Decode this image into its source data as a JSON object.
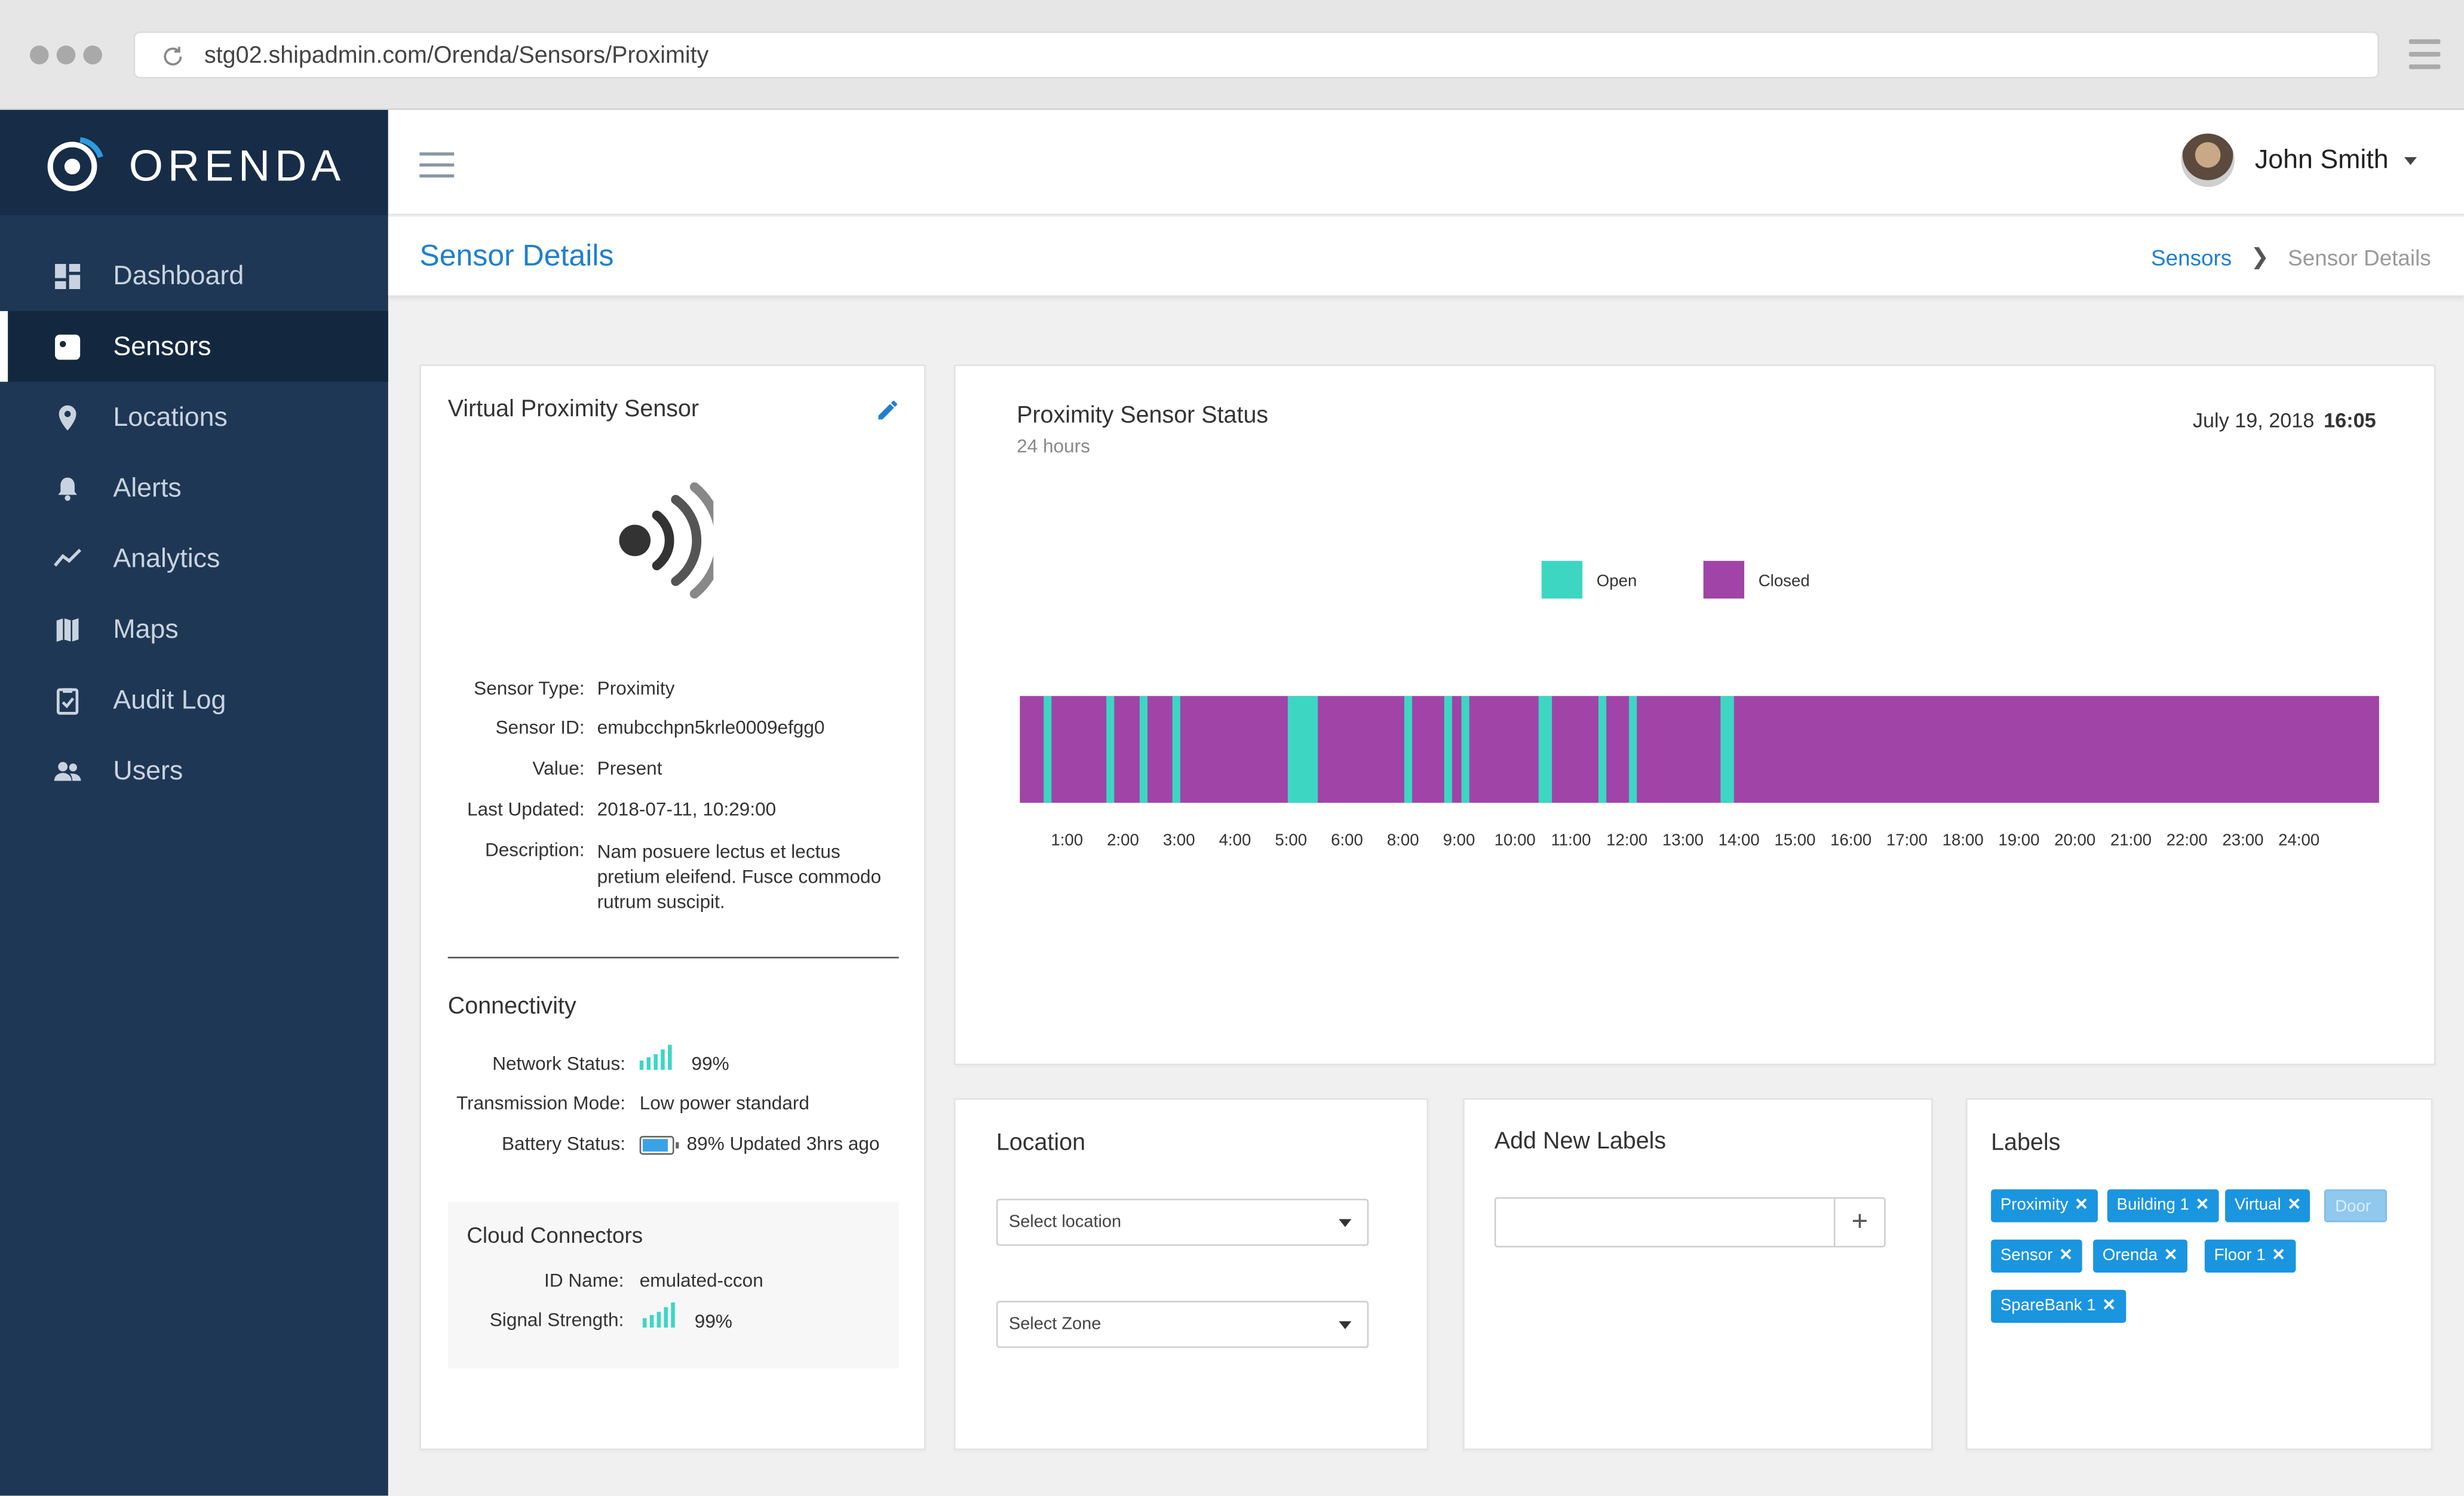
{
  "browser": {
    "url": "stg02.shipadmin.com/Orenda/Sensors/Proximity"
  },
  "brand": {
    "name": "ORENDA"
  },
  "sidebar": {
    "items": [
      {
        "label": "Dashboard",
        "icon": "dashboard-icon"
      },
      {
        "label": "Sensors",
        "icon": "sensor-icon",
        "active": true
      },
      {
        "label": "Locations",
        "icon": "location-pin-icon"
      },
      {
        "label": "Alerts",
        "icon": "bell-icon"
      },
      {
        "label": "Analytics",
        "icon": "analytics-icon"
      },
      {
        "label": "Maps",
        "icon": "map-icon"
      },
      {
        "label": "Audit Log",
        "icon": "clipboard-icon"
      },
      {
        "label": "Users",
        "icon": "users-icon"
      }
    ]
  },
  "header": {
    "user_name": "John Smith"
  },
  "page": {
    "title": "Sensor Details",
    "breadcrumb": [
      "Sensors",
      "Sensor Details"
    ]
  },
  "sensor": {
    "title": "Virtual Proximity Sensor",
    "fields": {
      "type": {
        "label": "Sensor Type:",
        "value": "Proximity"
      },
      "id": {
        "label": "Sensor ID:",
        "value": "emubcchpn5krle0009efgg0"
      },
      "value": {
        "label": "Value:",
        "value": "Present"
      },
      "updated": {
        "label": "Last Updated:",
        "value": "2018-07-11, 10:29:00"
      },
      "description": {
        "label": "Description:",
        "value": "Nam posuere lectus et lectus pretium eleifend. Fusce commodo rutrum suscipit."
      }
    },
    "connectivity": {
      "title": "Connectivity",
      "network": {
        "label": "Network Status:",
        "value": "99%"
      },
      "transmission": {
        "label": "Transmission Mode:",
        "value": "Low power standard"
      },
      "battery": {
        "label": "Battery Status:",
        "value": "89% Updated 3hrs ago",
        "level": 0.89
      }
    },
    "cloud": {
      "title": "Cloud Connectors",
      "id_name": {
        "label": "ID Name:",
        "value": "emulated-ccon"
      },
      "signal": {
        "label": "Signal Strength:",
        "value": "99%"
      }
    }
  },
  "status_chart": {
    "title": "Proximity Sensor Status",
    "subtitle": "24 hours",
    "date": "July 19, 2018",
    "time": "16:05"
  },
  "colors": {
    "open": "#3dd6c2",
    "closed": "#a044a8",
    "accent": "#1f7fd0",
    "sidebar": "#1e3755"
  },
  "chart_data": {
    "type": "bar",
    "title": "Proximity Sensor Status",
    "subtitle": "24 hours",
    "legend": [
      "Open",
      "Closed"
    ],
    "legend_position": "top-center",
    "x_ticks": [
      "1:00",
      "2:00",
      "3:00",
      "4:00",
      "5:00",
      "6:00",
      "8:00",
      "9:00",
      "10:00",
      "11:00",
      "12:00",
      "13:00",
      "14:00",
      "15:00",
      "16:00",
      "17:00",
      "18:00",
      "19:00",
      "20:00",
      "21:00",
      "22:00",
      "23:00",
      "24:00"
    ],
    "x_range_hours": [
      0.0,
      24.5
    ],
    "open_events_hours": [
      0.5,
      1.63,
      2.23,
      2.82,
      4.9,
      4.98,
      5.06,
      5.14,
      5.22,
      5.3,
      7.0,
      7.72,
      8.03,
      9.42,
      9.52,
      10.5,
      11.05,
      12.7,
      12.8
    ]
  },
  "location": {
    "title": "Location",
    "select_location": "Select location",
    "select_zone": "Select Zone"
  },
  "add_labels": {
    "title": "Add New Labels",
    "placeholder": "",
    "add": "+"
  },
  "labels": {
    "title": "Labels",
    "items": [
      "Proximity",
      "Building 1",
      "Virtual",
      "Sensor",
      "Orenda",
      "Floor 1",
      "SpareBank 1"
    ],
    "input_text": "Door"
  }
}
